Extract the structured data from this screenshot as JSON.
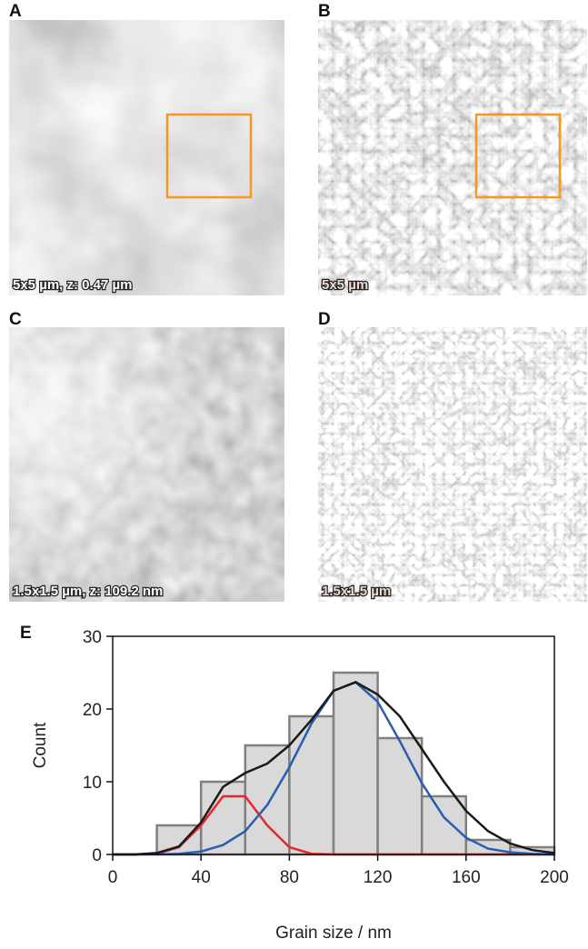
{
  "panels": [
    {
      "letter": "A",
      "caption": "5x5 µm, z: 0.47 µm"
    },
    {
      "letter": "B",
      "caption": "5x5 µm"
    },
    {
      "letter": "C",
      "caption": "1.5x1.5 µm, z: 109.2 nm"
    },
    {
      "letter": "D",
      "caption": "1.5x1.5 µm"
    }
  ],
  "chart_data": {
    "type": "histogram",
    "panel_letter": "E",
    "x_label": "Grain size / nm",
    "y_label": "Count",
    "bins": [
      0,
      20,
      40,
      60,
      80,
      100,
      120,
      140,
      160,
      180,
      200
    ],
    "values": [
      0,
      4,
      10,
      15,
      19,
      25,
      16,
      8,
      2,
      1
    ],
    "color": "#d9d9d9",
    "edge_color": "#808080",
    "xlim": [
      0,
      200
    ],
    "xticks": [
      0,
      40,
      80,
      120,
      160,
      200
    ],
    "ylim": [
      0,
      30
    ],
    "yticks": [
      0,
      10,
      20,
      30
    ],
    "fit_x": [
      0,
      10,
      20,
      30,
      40,
      50,
      60,
      70,
      80,
      90,
      100,
      110,
      120,
      130,
      140,
      150,
      160,
      170,
      180,
      190,
      200
    ],
    "fits": [
      {
        "color": "#e8262b",
        "values": [
          0,
          0,
          0.1,
          1,
          4,
          8,
          8,
          4,
          1,
          0.1,
          0,
          0,
          0,
          0,
          0,
          0,
          0,
          0,
          0,
          0,
          0
        ]
      },
      {
        "color": "#2a5db0",
        "values": [
          0,
          0,
          0,
          0.1,
          0.4,
          1.3,
          3.2,
          6.8,
          12,
          18,
          22.5,
          23.7,
          21,
          15.6,
          9.8,
          5.1,
          2.3,
          0.8,
          0.3,
          0.1,
          0
        ]
      },
      {
        "color": "#1a1a1a",
        "values": [
          0,
          0,
          0.2,
          1.1,
          4.4,
          9.3,
          11.2,
          12.5,
          15,
          18.5,
          22.5,
          23.7,
          22,
          19,
          14.5,
          10,
          6,
          3.2,
          1.5,
          0.6,
          0.2
        ]
      }
    ]
  }
}
